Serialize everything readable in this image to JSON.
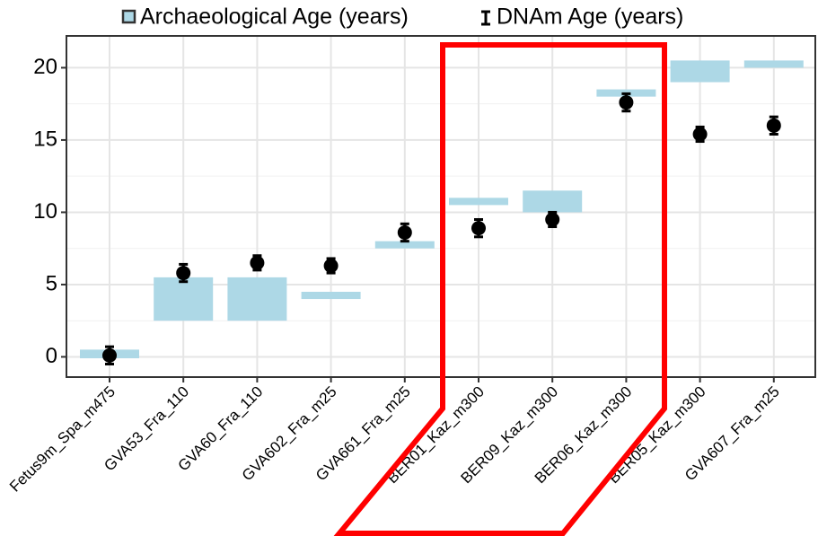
{
  "chart_data": {
    "type": "range_point",
    "categories": [
      "Fetus9m_Spa_m475",
      "GVA53_Fra_110",
      "GVA60_Fra_110",
      "GVA602_Fra_m25",
      "GVA661_Fra_m25",
      "BER01_Kaz_m300",
      "BER09_Kaz_m300",
      "BER06_Kaz_m300",
      "BER05_Kaz_m300",
      "GVA607_Fra_m25"
    ],
    "series": [
      {
        "name": "Archaeological Age (years)",
        "color": "#add8e6",
        "low": [
          -0.1,
          2.5,
          2.5,
          4,
          7.5,
          10.5,
          10,
          18,
          19,
          20
        ],
        "high": [
          0.5,
          5.5,
          5.5,
          4.5,
          8,
          11,
          11.5,
          18.5,
          20.5,
          20.5
        ]
      },
      {
        "name": "DNAm Age (years)",
        "color": "#000000",
        "values": [
          0.1,
          5.8,
          6.5,
          6.3,
          8.6,
          8.9,
          9.5,
          17.6,
          15.4,
          16.0
        ],
        "errors": [
          0.6,
          0.6,
          0.5,
          0.5,
          0.6,
          0.6,
          0.5,
          0.6,
          0.5,
          0.6
        ]
      }
    ],
    "ylim": [
      -1.4,
      22.2
    ],
    "yticks": [
      0,
      5,
      10,
      15,
      20
    ],
    "grid": true
  }
}
